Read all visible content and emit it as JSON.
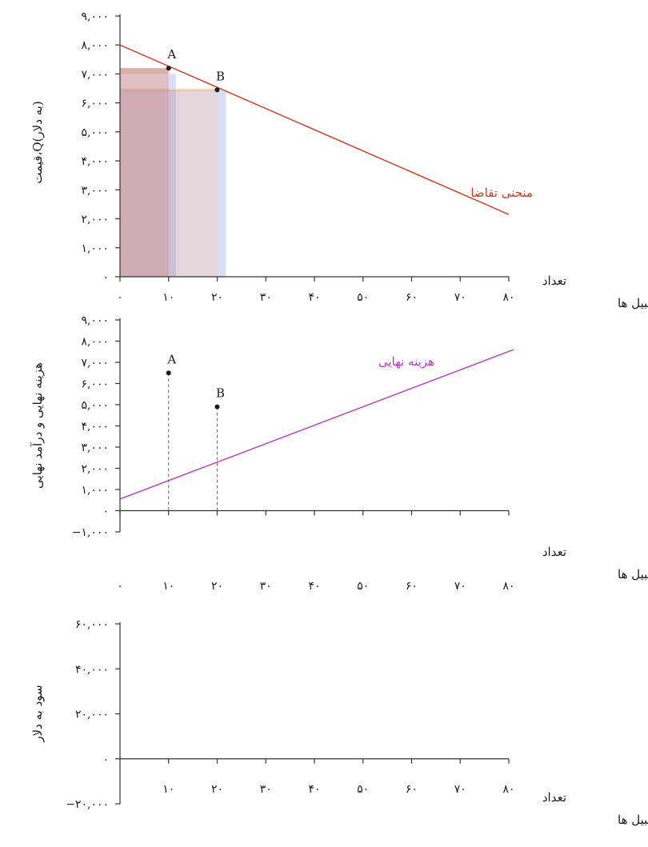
{
  "chart_data": [
    {
      "type": "line",
      "ylabel": "قیمت،Q(به دلار)",
      "xlabel_line1": "تعداد",
      "xlabel_line2": "Q،اتومبیل ها",
      "xlim": [
        0,
        80
      ],
      "ylim": [
        0,
        9000
      ],
      "x_ticks": [
        0,
        10,
        20,
        30,
        40,
        50,
        60,
        70,
        80
      ],
      "x_tick_labels": [
        "۰",
        "۱۰",
        "۲۰",
        "۳۰",
        "۴۰",
        "۵۰",
        "۶۰",
        "۷۰",
        "۸۰"
      ],
      "y_ticks": [
        0,
        1000,
        2000,
        3000,
        4000,
        5000,
        6000,
        7000,
        8000,
        9000
      ],
      "y_tick_labels": [
        "۰",
        "۱,۰۰۰",
        "۲,۰۰۰",
        "۳,۰۰۰",
        "۴,۰۰۰",
        "۵,۰۰۰",
        "۶,۰۰۰",
        "۷,۰۰۰",
        "۸,۰۰۰",
        "۹,۰۰۰"
      ],
      "series": [
        {
          "name": "منحنی تقاضا",
          "color": "#d9341e",
          "x": [
            0,
            80
          ],
          "y": [
            8000,
            2150
          ]
        }
      ],
      "points": [
        {
          "label": "A",
          "x": 10,
          "y": 7200
        },
        {
          "label": "B",
          "x": 20,
          "y": 6450
        }
      ],
      "revenue_rects": [
        {
          "x0": 0,
          "x1": 10,
          "y": 7200,
          "fill": "#b5707a",
          "opacity": 0.45
        },
        {
          "x0": 0,
          "x1": 20,
          "y": 6450,
          "fill": "#b58a98",
          "opacity": 0.35
        }
      ],
      "rect_shadows": [
        {
          "x0": 10,
          "x1": 11.5,
          "y": 7000,
          "fill": "#aab4e8",
          "opacity": 0.45
        },
        {
          "x0": 20,
          "x1": 21.8,
          "y": 6400,
          "fill": "#aab4e8",
          "opacity": 0.45
        },
        {
          "x0": 0,
          "x1": 10,
          "y0": 7000,
          "y1": 7200,
          "fill": "#f2c896",
          "opacity": 0.5
        },
        {
          "x0": 0,
          "x1": 20,
          "y0": 6400,
          "y1": 6500,
          "fill": "#f2c896",
          "opacity": 0.5
        }
      ],
      "grid": false
    },
    {
      "type": "line",
      "ylabel": "هزینه نهایی و درآمد نهایی",
      "xlabel_line1": "تعداد",
      "xlabel_line2": "Q،اتومبیل ها",
      "xlim": [
        0,
        80
      ],
      "ylim": [
        -1000,
        9000
      ],
      "x_ticks": [
        0,
        10,
        20,
        30,
        40,
        50,
        60,
        70,
        80
      ],
      "x_tick_labels": [
        "۰",
        "۱۰",
        "۲۰",
        "۳۰",
        "۴۰",
        "۵۰",
        "۶۰",
        "۷۰",
        "۸۰"
      ],
      "y_ticks": [
        -1000,
        0,
        1000,
        2000,
        3000,
        4000,
        5000,
        6000,
        7000,
        8000,
        9000
      ],
      "y_tick_labels": [
        "−۱,۰۰۰",
        "۰",
        "۱,۰۰۰",
        "۲,۰۰۰",
        "۳,۰۰۰",
        "۴,۰۰۰",
        "۵,۰۰۰",
        "۶,۰۰۰",
        "۷,۰۰۰",
        "۸,۰۰۰",
        "۹,۰۰۰"
      ],
      "series": [
        {
          "name": "هزینه نهایی",
          "color": "#b63bbf",
          "x": [
            0,
            81
          ],
          "y": [
            550,
            7600
          ]
        }
      ],
      "points": [
        {
          "label": "A",
          "x": 10,
          "y": 6500
        },
        {
          "label": "B",
          "x": 20,
          "y": 4900
        }
      ],
      "grid": false
    },
    {
      "type": "line",
      "ylabel": "سود به دلار",
      "xlabel_line1": "تعداد",
      "xlabel_line2": "Q،اتومبیل ها",
      "xlim": [
        0,
        80
      ],
      "ylim": [
        -20000,
        60000
      ],
      "x_ticks": [
        10,
        20,
        30,
        40,
        50,
        60,
        70,
        80
      ],
      "x_tick_labels": [
        "۱۰",
        "۲۰",
        "۳۰",
        "۴۰",
        "۵۰",
        "۶۰",
        "۷۰",
        "۸۰"
      ],
      "y_ticks": [
        -20000,
        0,
        20000,
        40000,
        60000
      ],
      "y_tick_labels": [
        "−۲۰,۰۰۰",
        "۰",
        "۲۰,۰۰۰",
        "۴۰,۰۰۰",
        "۶۰,۰۰۰"
      ],
      "series": [],
      "points": [],
      "grid": false
    }
  ]
}
